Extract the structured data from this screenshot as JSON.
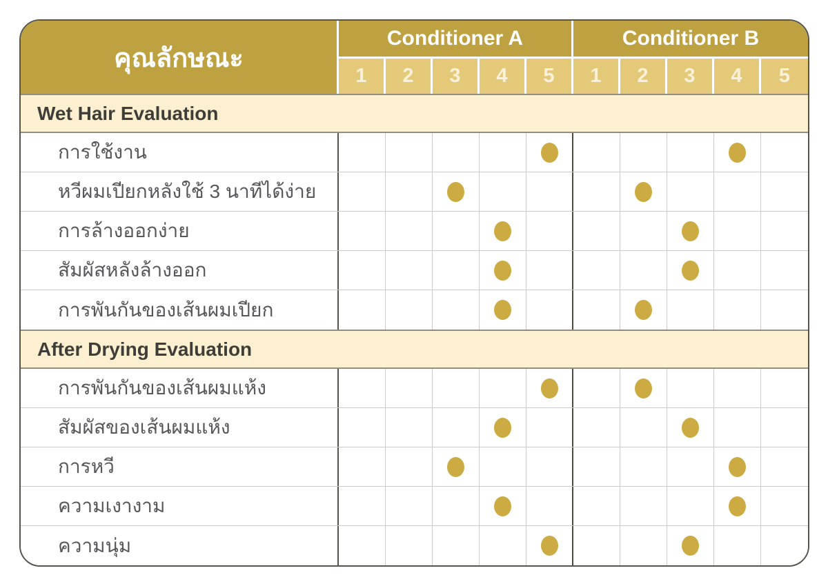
{
  "colors": {
    "header_gold": "#bea242",
    "scale_gold": "#e4ca78",
    "section_cream": "#fcf0d0",
    "dot_gold": "#cbab42",
    "label_text": "#57575a",
    "section_text": "#3e3d3a",
    "header_text": "#ffffff"
  },
  "chart_data": {
    "type": "table",
    "title": "คุณลักษณะ",
    "groups": [
      "Conditioner A",
      "Conditioner B"
    ],
    "scale": [
      "1",
      "2",
      "3",
      "4",
      "5"
    ],
    "scale_range": [
      1,
      5
    ],
    "legend_position": "none",
    "sections": [
      {
        "title": "Wet Hair Evaluation",
        "rows": [
          {
            "label": "การใช้งาน",
            "conditioner_a": 5,
            "conditioner_b": 4
          },
          {
            "label": "หวีผมเปียกหลังใช้ 3 นาทีได้ง่าย",
            "conditioner_a": 3,
            "conditioner_b": 2
          },
          {
            "label": "การล้างออกง่าย",
            "conditioner_a": 4,
            "conditioner_b": 3
          },
          {
            "label": "สัมผัสหลังล้างออก",
            "conditioner_a": 4,
            "conditioner_b": 3
          },
          {
            "label": "การพันกันของเส้นผมเปียก",
            "conditioner_a": 4,
            "conditioner_b": 2
          }
        ]
      },
      {
        "title": "After Drying Evaluation",
        "rows": [
          {
            "label": "การพันกันของเส้นผมแห้ง",
            "conditioner_a": 5,
            "conditioner_b": 2
          },
          {
            "label": "สัมผัสของเส้นผมแห้ง",
            "conditioner_a": 4,
            "conditioner_b": 3
          },
          {
            "label": "การหวี",
            "conditioner_a": 3,
            "conditioner_b": 4
          },
          {
            "label": "ความเงางาม",
            "conditioner_a": 4,
            "conditioner_b": 4
          },
          {
            "label": "ความนุ่ม",
            "conditioner_a": 5,
            "conditioner_b": 3
          }
        ]
      }
    ]
  }
}
